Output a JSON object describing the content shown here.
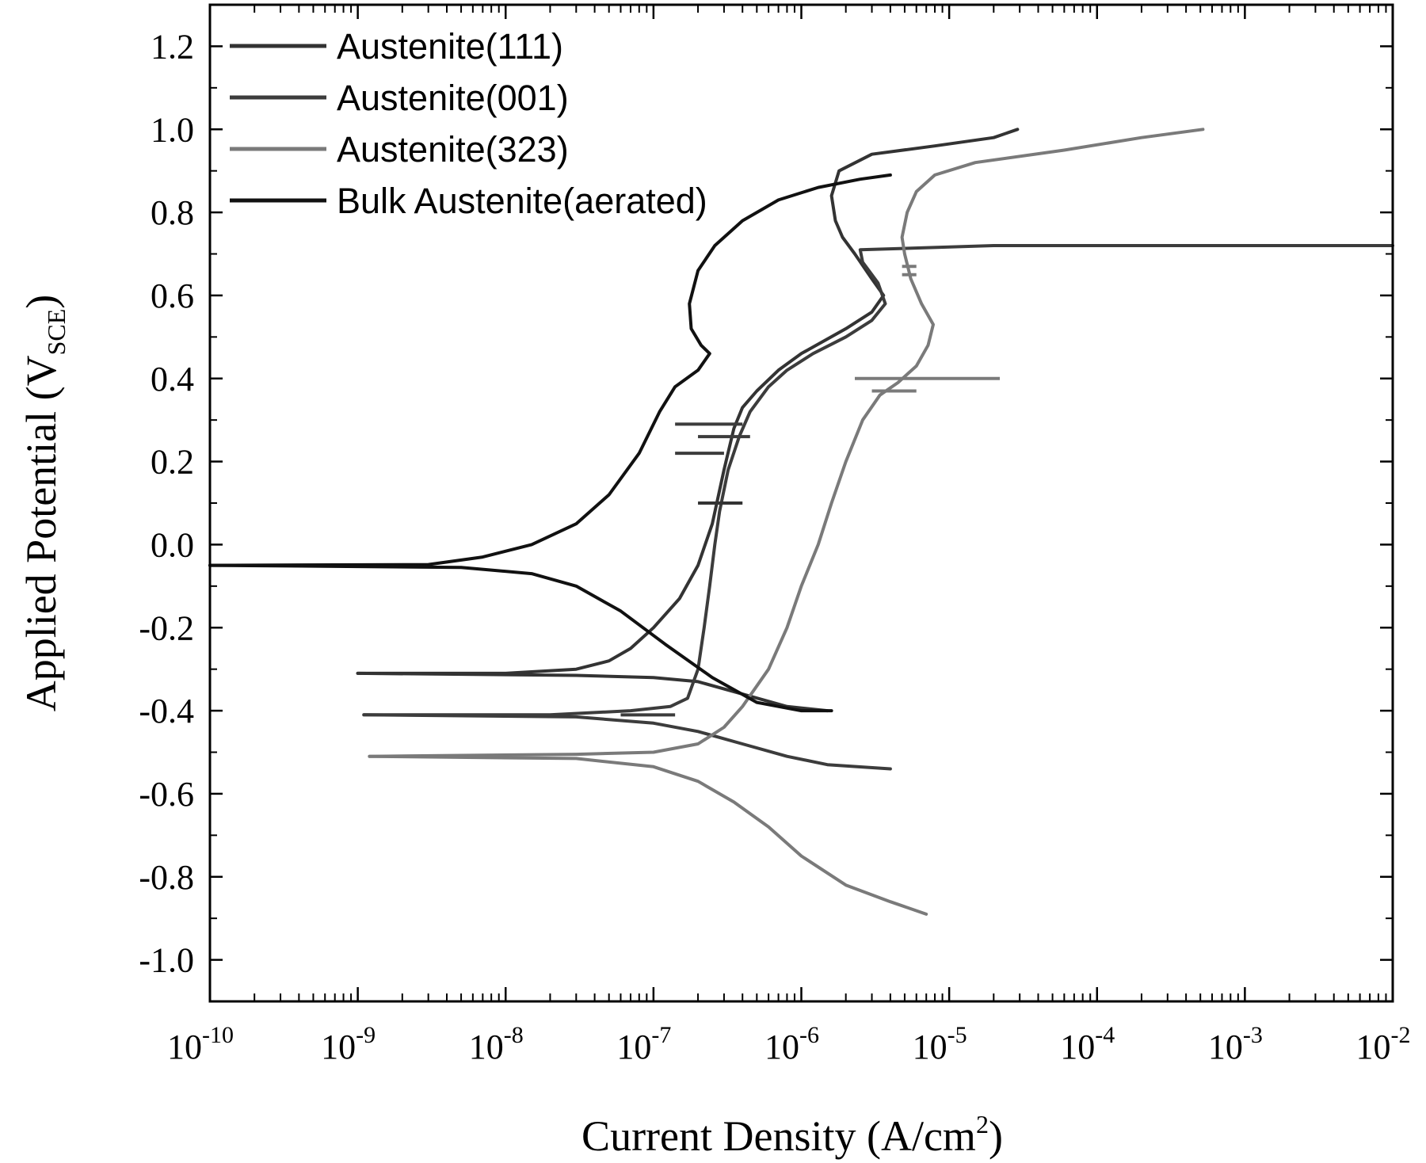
{
  "chart_data": {
    "type": "line",
    "title": "",
    "xlabel": "Current Density (A/cm",
    "xlabel_sup": "2",
    "xlabel_end": ")",
    "ylabel": "Applied Potential (V",
    "ylabel_sub": "SCE",
    "ylabel_end": ")",
    "x_scale": "log",
    "xlim": [
      1e-10,
      0.01
    ],
    "ylim": [
      -1.1,
      1.3
    ],
    "x_ticks": [
      {
        "base": "10",
        "exp": "-10",
        "value": 1e-10
      },
      {
        "base": "10",
        "exp": "-9",
        "value": 1e-09
      },
      {
        "base": "10",
        "exp": "-8",
        "value": 1e-08
      },
      {
        "base": "10",
        "exp": "-7",
        "value": 1e-07
      },
      {
        "base": "10",
        "exp": "-6",
        "value": 1e-06
      },
      {
        "base": "10",
        "exp": "-5",
        "value": 1e-05
      },
      {
        "base": "10",
        "exp": "-4",
        "value": 0.0001
      },
      {
        "base": "10",
        "exp": "-3",
        "value": 0.001
      },
      {
        "base": "10",
        "exp": "-2",
        "value": 0.01
      }
    ],
    "y_ticks": [
      {
        "label": "1.2",
        "value": 1.2
      },
      {
        "label": "1.0",
        "value": 1.0
      },
      {
        "label": "0.8",
        "value": 0.8
      },
      {
        "label": "0.6",
        "value": 0.6
      },
      {
        "label": "0.4",
        "value": 0.4
      },
      {
        "label": "0.2",
        "value": 0.2
      },
      {
        "label": "0.0",
        "value": 0.0
      },
      {
        "label": "-0.2",
        "value": -0.2
      },
      {
        "label": "-0.4",
        "value": -0.4
      },
      {
        "label": "-0.6",
        "value": -0.6
      },
      {
        "label": "-0.8",
        "value": -0.8
      },
      {
        "label": "-1.0",
        "value": -1.0
      }
    ],
    "grid": false,
    "legend_position": "top-left",
    "series": [
      {
        "name": "Austenite(111)",
        "color": "#333333",
        "points": [
          [
            1e-09,
            -0.31
          ],
          [
            1e-08,
            -0.31
          ],
          [
            3e-08,
            -0.3
          ],
          [
            5e-08,
            -0.28
          ],
          [
            7e-08,
            -0.25
          ],
          [
            1e-07,
            -0.2
          ],
          [
            1.5e-07,
            -0.13
          ],
          [
            2e-07,
            -0.05
          ],
          [
            2.5e-07,
            0.05
          ],
          [
            3e-07,
            0.18
          ],
          [
            3.5e-07,
            0.28
          ],
          [
            4e-07,
            0.33
          ],
          [
            5e-07,
            0.37
          ],
          [
            7e-07,
            0.42
          ],
          [
            1e-06,
            0.46
          ],
          [
            2e-06,
            0.52
          ],
          [
            3e-06,
            0.56
          ],
          [
            3.6e-06,
            0.6
          ],
          [
            3e-06,
            0.64
          ],
          [
            2.3e-06,
            0.7
          ],
          [
            1.9e-06,
            0.74
          ],
          [
            1.7e-06,
            0.78
          ],
          [
            1.6e-06,
            0.84
          ],
          [
            1.8e-06,
            0.9
          ],
          [
            3e-06,
            0.94
          ],
          [
            8e-06,
            0.96
          ],
          [
            2e-05,
            0.98
          ],
          [
            2.9e-05,
            1.0
          ]
        ]
      },
      {
        "name": "Austenite(111)",
        "color": "#333333",
        "points": [
          [
            1e-09,
            -0.31
          ],
          [
            3e-08,
            -0.315
          ],
          [
            1e-07,
            -0.32
          ],
          [
            2e-07,
            -0.33
          ],
          [
            4e-07,
            -0.36
          ],
          [
            8e-07,
            -0.39
          ],
          [
            1.5e-06,
            -0.4
          ]
        ]
      },
      {
        "name": "Austenite(001)",
        "color": "#3c3c3c",
        "points": [
          [
            1.1e-09,
            -0.41
          ],
          [
            2e-08,
            -0.41
          ],
          [
            7e-08,
            -0.4
          ],
          [
            1.3e-07,
            -0.39
          ],
          [
            1.7e-07,
            -0.37
          ],
          [
            2e-07,
            -0.3
          ],
          [
            2.2e-07,
            -0.2
          ],
          [
            2.4e-07,
            -0.1
          ],
          [
            2.6e-07,
            0.0
          ],
          [
            2.8e-07,
            0.08
          ],
          [
            3.2e-07,
            0.18
          ],
          [
            3.8e-07,
            0.26
          ],
          [
            4.5e-07,
            0.32
          ],
          [
            6e-07,
            0.38
          ],
          [
            8e-07,
            0.42
          ],
          [
            1.2e-06,
            0.46
          ],
          [
            2e-06,
            0.5
          ],
          [
            3e-06,
            0.54
          ],
          [
            3.7e-06,
            0.58
          ],
          [
            3.3e-06,
            0.63
          ],
          [
            2.6e-06,
            0.68
          ],
          [
            2.5e-06,
            0.71
          ],
          [
            2e-05,
            0.72
          ],
          [
            0.01,
            0.72
          ]
        ]
      },
      {
        "name": "Austenite(001)",
        "color": "#3c3c3c",
        "points": [
          [
            1.1e-09,
            -0.41
          ],
          [
            3e-08,
            -0.415
          ],
          [
            1e-07,
            -0.43
          ],
          [
            2e-07,
            -0.45
          ],
          [
            4e-07,
            -0.48
          ],
          [
            8e-07,
            -0.51
          ],
          [
            1.5e-06,
            -0.53
          ],
          [
            4e-06,
            -0.54
          ]
        ]
      },
      {
        "name": "Austenite(323)",
        "color": "#7a7a7a",
        "points": [
          [
            1.2e-09,
            -0.51
          ],
          [
            3e-08,
            -0.505
          ],
          [
            1e-07,
            -0.5
          ],
          [
            2e-07,
            -0.48
          ],
          [
            3e-07,
            -0.44
          ],
          [
            4e-07,
            -0.39
          ],
          [
            6e-07,
            -0.3
          ],
          [
            8e-07,
            -0.2
          ],
          [
            1e-06,
            -0.1
          ],
          [
            1.3e-06,
            0.0
          ],
          [
            1.6e-06,
            0.1
          ],
          [
            2e-06,
            0.2
          ],
          [
            2.6e-06,
            0.3
          ],
          [
            3.4e-06,
            0.36
          ],
          [
            4.5e-06,
            0.39
          ],
          [
            6e-06,
            0.43
          ],
          [
            7.2e-06,
            0.48
          ],
          [
            7.8e-06,
            0.53
          ],
          [
            6.5e-06,
            0.58
          ],
          [
            5.5e-06,
            0.64
          ],
          [
            5e-06,
            0.7
          ],
          [
            4.8e-06,
            0.74
          ],
          [
            5.2e-06,
            0.8
          ],
          [
            6e-06,
            0.85
          ],
          [
            8e-06,
            0.89
          ],
          [
            1.5e-05,
            0.92
          ],
          [
            6e-05,
            0.95
          ],
          [
            0.0002,
            0.98
          ],
          [
            0.00052,
            1.0
          ]
        ]
      },
      {
        "name": "Austenite(323)",
        "color": "#7a7a7a",
        "points": [
          [
            1.2e-09,
            -0.51
          ],
          [
            3e-08,
            -0.515
          ],
          [
            1e-07,
            -0.535
          ],
          [
            2e-07,
            -0.57
          ],
          [
            3.5e-07,
            -0.62
          ],
          [
            6e-07,
            -0.68
          ],
          [
            1e-06,
            -0.75
          ],
          [
            2e-06,
            -0.82
          ],
          [
            4e-06,
            -0.86
          ],
          [
            7e-06,
            -0.89
          ]
        ]
      },
      {
        "name": "Bulk Austenite(aerated)",
        "color": "#111111",
        "points": [
          [
            1e-10,
            -0.05
          ],
          [
            3e-09,
            -0.048
          ],
          [
            7e-09,
            -0.03
          ],
          [
            1.5e-08,
            0.0
          ],
          [
            3e-08,
            0.05
          ],
          [
            5e-08,
            0.12
          ],
          [
            8e-08,
            0.22
          ],
          [
            1.1e-07,
            0.32
          ],
          [
            1.4e-07,
            0.38
          ],
          [
            2e-07,
            0.42
          ],
          [
            2.4e-07,
            0.46
          ],
          [
            2.1e-07,
            0.48
          ],
          [
            1.8e-07,
            0.52
          ],
          [
            1.75e-07,
            0.58
          ],
          [
            2e-07,
            0.66
          ],
          [
            2.6e-07,
            0.72
          ],
          [
            4e-07,
            0.78
          ],
          [
            7e-07,
            0.83
          ],
          [
            1.3e-06,
            0.86
          ],
          [
            2.5e-06,
            0.88
          ],
          [
            4e-06,
            0.89
          ]
        ]
      },
      {
        "name": "Bulk Austenite(aerated)",
        "color": "#111111",
        "points": [
          [
            1e-10,
            -0.05
          ],
          [
            5e-09,
            -0.055
          ],
          [
            1.5e-08,
            -0.07
          ],
          [
            3e-08,
            -0.1
          ],
          [
            6e-08,
            -0.16
          ],
          [
            1.2e-07,
            -0.24
          ],
          [
            2.5e-07,
            -0.32
          ],
          [
            5e-07,
            -0.38
          ],
          [
            1e-06,
            -0.4
          ],
          [
            1.6e-06,
            -0.4
          ]
        ]
      }
    ],
    "noise_spikes": [
      {
        "series": "Austenite(001)",
        "color": "#3c3c3c",
        "y": 0.29,
        "x1": 1.4e-07,
        "x2": 4e-07
      },
      {
        "series": "Austenite(001)",
        "color": "#3c3c3c",
        "y": 0.22,
        "x1": 1.4e-07,
        "x2": 3e-07
      },
      {
        "series": "Austenite(001)",
        "color": "#3c3c3c",
        "y": 0.26,
        "x1": 2e-07,
        "x2": 4.5e-07
      },
      {
        "series": "Austenite(111)",
        "color": "#333333",
        "y": 0.1,
        "x1": 2e-07,
        "x2": 4e-07
      },
      {
        "series": "Austenite(001)",
        "color": "#3c3c3c",
        "y": -0.41,
        "x1": 6e-08,
        "x2": 1.4e-07
      },
      {
        "series": "Austenite(323)",
        "color": "#7a7a7a",
        "y": 0.4,
        "x1": 2.3e-06,
        "x2": 2.2e-05
      },
      {
        "series": "Austenite(323)",
        "color": "#7a7a7a",
        "y": 0.37,
        "x1": 3e-06,
        "x2": 6e-06
      },
      {
        "series": "Austenite(323)",
        "color": "#7a7a7a",
        "y": 0.65,
        "x1": 4.8e-06,
        "x2": 6e-06
      },
      {
        "series": "Austenite(323)",
        "color": "#7a7a7a",
        "y": 0.67,
        "x1": 4.8e-06,
        "x2": 6e-06
      }
    ],
    "legend": [
      {
        "label": "Austenite(111)",
        "color": "#333333"
      },
      {
        "label": "Austenite(001)",
        "color": "#3c3c3c"
      },
      {
        "label": "Austenite(323)",
        "color": "#7a7a7a"
      },
      {
        "label": "Bulk Austenite(aerated)",
        "color": "#111111"
      }
    ]
  }
}
